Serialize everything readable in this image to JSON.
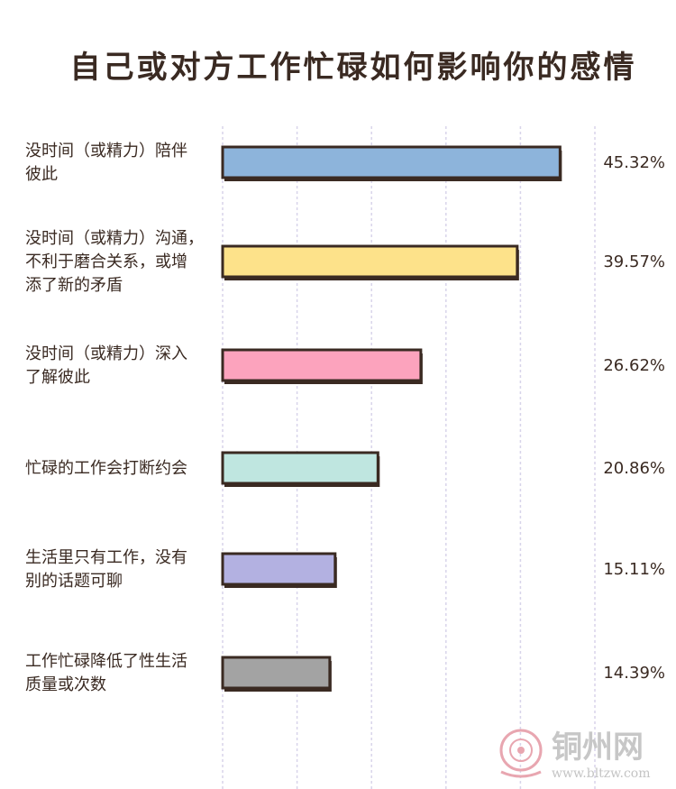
{
  "chart_data": {
    "type": "bar",
    "orientation": "horizontal",
    "title": "自己或对方工作忙碌如何影响你的感情",
    "categories": [
      [
        "没时间（或精力）陪伴",
        "彼此"
      ],
      [
        "没时间（或精力）沟通，",
        "不利于磨合关系，或增",
        "添了新的矛盾"
      ],
      [
        "没时间（或精力）深入",
        "了解彼此"
      ],
      [
        "忙碌的工作会打断约会"
      ],
      [
        "生活里只有工作，没有",
        "别的话题可聊"
      ],
      [
        "工作忙碌降低了性生活",
        "质量或次数"
      ]
    ],
    "values": [
      45.32,
      39.57,
      26.62,
      20.86,
      15.11,
      14.39
    ],
    "value_labels": [
      "45.32%",
      "39.57%",
      "26.62%",
      "20.86%",
      "15.11%",
      "14.39%"
    ],
    "colors": [
      "#8db4db",
      "#fde28a",
      "#fca3bd",
      "#bfe6e0",
      "#b3b1e1",
      "#a3a3a3"
    ],
    "xlim": [
      0,
      50
    ],
    "grid": true,
    "legend": "none"
  },
  "watermark": {
    "site_name": "铜州网",
    "url": "www.bltzw.com",
    "colors": [
      "#e8a6b0",
      "#c7c7c7"
    ]
  }
}
